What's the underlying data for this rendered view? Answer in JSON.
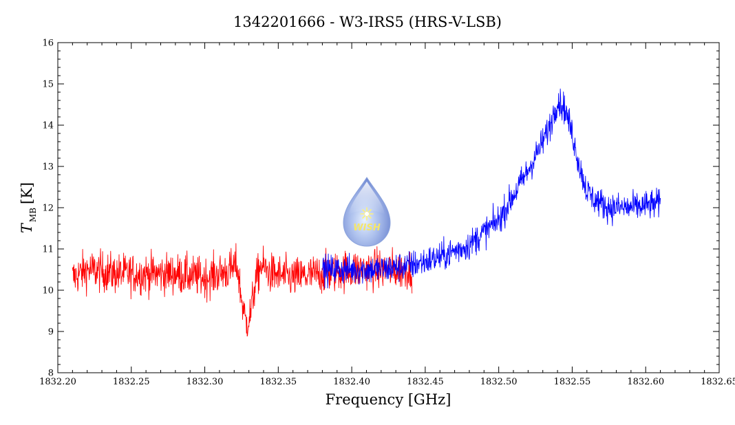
{
  "chart_data": {
    "type": "line",
    "title": "1342201666 - W3-IRS5 (HRS-V-LSB)",
    "xlabel": "Frequency [GHz]",
    "ylabel_main": "T",
    "ylabel_sub": "MB",
    "ylabel_unit": "[K]",
    "xlim": [
      1832.2,
      1832.65
    ],
    "ylim": [
      8,
      16
    ],
    "x_ticks": [
      "1832.20",
      "1832.25",
      "1832.30",
      "1832.35",
      "1832.40",
      "1832.45",
      "1832.50",
      "1832.55",
      "1832.60",
      "1832.65"
    ],
    "y_ticks": [
      "8",
      "9",
      "10",
      "11",
      "12",
      "13",
      "14",
      "15",
      "16"
    ],
    "grid": false,
    "colors": {
      "series_red": "#ff0000",
      "series_blue": "#0000ff"
    },
    "series": [
      {
        "color": "#ff0000",
        "noise": 0.38,
        "x": [
          1832.21,
          1832.22,
          1832.24,
          1832.26,
          1832.28,
          1832.3,
          1832.31,
          1832.318,
          1832.322,
          1832.325,
          1832.328,
          1832.331,
          1832.334,
          1832.338,
          1832.345,
          1832.36,
          1832.38,
          1832.4,
          1832.42,
          1832.441
        ],
        "y": [
          10.3,
          10.5,
          10.4,
          10.4,
          10.4,
          10.3,
          10.4,
          10.5,
          10.6,
          9.8,
          9.2,
          9.4,
          10.1,
          10.6,
          10.4,
          10.3,
          10.4,
          10.5,
          10.5,
          10.5
        ]
      },
      {
        "color": "#0000ff",
        "noise": 0.28,
        "x": [
          1832.38,
          1832.4,
          1832.42,
          1832.44,
          1832.46,
          1832.48,
          1832.5,
          1832.51,
          1832.52,
          1832.53,
          1832.535,
          1832.54,
          1832.545,
          1832.55,
          1832.555,
          1832.56,
          1832.565,
          1832.575,
          1832.59,
          1832.61
        ],
        "y": [
          10.5,
          10.5,
          10.5,
          10.6,
          10.8,
          11.1,
          11.7,
          12.3,
          12.9,
          13.6,
          14.0,
          14.6,
          14.4,
          13.8,
          13.0,
          12.4,
          12.2,
          12.0,
          12.0,
          12.1
        ]
      }
    ],
    "watermark": {
      "text": "WISH",
      "icon": "water-drop-star-icon"
    }
  }
}
